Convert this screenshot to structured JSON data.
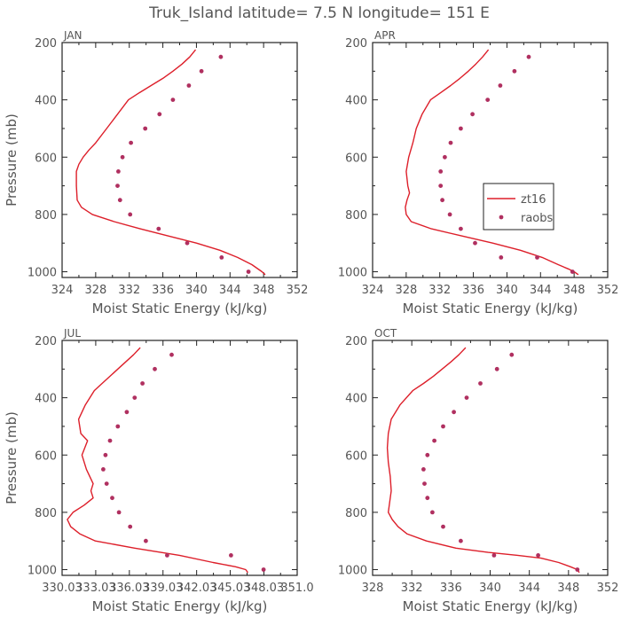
{
  "title": "Truk_Island  latitude= 7.5 N longitude= 151 E",
  "colors": {
    "model": "#dd1f2a",
    "obs": "#b03060",
    "text": "#555555",
    "frame": "#222222"
  },
  "chart_data": [
    {
      "type": "line",
      "panel": "JAN",
      "title": "JAN",
      "xlabel": "Moist Static Energy (kJ/kg)",
      "ylabel": "Pressure (mb)",
      "xlim": [
        324,
        352
      ],
      "ylim": [
        1020,
        200
      ],
      "xticks": [
        324,
        328,
        332,
        336,
        340,
        344,
        348,
        352
      ],
      "xtick_labels": [
        "324",
        "328",
        "332",
        "336",
        "340",
        "344",
        "348",
        "352"
      ],
      "yticks": [
        200,
        400,
        600,
        800,
        1000
      ],
      "ytick_labels": [
        "200",
        "400",
        "600",
        "800",
        "1000"
      ],
      "series": [
        {
          "name": "zt16",
          "kind": "line",
          "x": [
            339.9,
            339.2,
            338.3,
            337.2,
            336.0,
            334.6,
            333.2,
            331.9,
            330.6,
            329.3,
            328.0,
            327.2,
            326.5,
            326.0,
            325.7,
            325.7,
            325.8,
            326.3,
            327.6,
            330.2,
            333.3,
            336.6,
            340.0,
            342.8,
            344.9,
            346.6,
            347.8,
            348.2
          ],
          "y": [
            225,
            250,
            275,
            300,
            325,
            350,
            375,
            400,
            450,
            500,
            550,
            575,
            600,
            625,
            650,
            700,
            750,
            775,
            800,
            825,
            850,
            875,
            900,
            925,
            950,
            975,
            1000,
            1010
          ]
        },
        {
          "name": "raobs",
          "kind": "points",
          "x": [
            342.9,
            340.6,
            339.1,
            337.2,
            335.6,
            333.9,
            332.2,
            331.2,
            330.7,
            330.6,
            330.9,
            332.1,
            335.5,
            338.9,
            343.0,
            346.2
          ],
          "y": [
            250,
            300,
            350,
            400,
            450,
            500,
            550,
            600,
            650,
            700,
            750,
            800,
            850,
            900,
            950,
            1000
          ]
        }
      ]
    },
    {
      "type": "line",
      "panel": "APR",
      "title": "APR",
      "xlabel": "Moist Static Energy (kJ/kg)",
      "ylabel": "",
      "xlim": [
        324,
        352
      ],
      "ylim": [
        1020,
        200
      ],
      "xticks": [
        324,
        328,
        332,
        336,
        340,
        344,
        348,
        352
      ],
      "xtick_labels": [
        "324",
        "328",
        "332",
        "336",
        "340",
        "344",
        "348",
        "352"
      ],
      "yticks": [
        200,
        400,
        600,
        800,
        1000
      ],
      "ytick_labels": [
        "200",
        "400",
        "600",
        "800",
        "1000"
      ],
      "legend": {
        "position": "center-right",
        "entries": [
          "zt16",
          "raobs"
        ]
      },
      "series": [
        {
          "name": "zt16",
          "kind": "line",
          "x": [
            337.8,
            337.1,
            336.3,
            335.4,
            334.4,
            333.3,
            332.1,
            330.9,
            329.9,
            329.2,
            328.8,
            328.3,
            328.0,
            328.2,
            328.4,
            328.1,
            327.9,
            328.0,
            328.6,
            331.0,
            334.6,
            338.3,
            341.6,
            344.2,
            346.1,
            347.3,
            348.0,
            348.5
          ],
          "y": [
            225,
            250,
            275,
            300,
            325,
            350,
            375,
            400,
            450,
            500,
            550,
            600,
            650,
            700,
            725,
            750,
            775,
            800,
            825,
            850,
            875,
            900,
            925,
            950,
            975,
            990,
            1000,
            1010
          ]
        },
        {
          "name": "raobs",
          "kind": "points",
          "x": [
            342.6,
            340.9,
            339.2,
            337.7,
            335.9,
            334.5,
            333.3,
            332.6,
            332.1,
            332.1,
            332.3,
            333.2,
            334.5,
            336.2,
            339.3,
            343.6,
            347.8
          ],
          "y": [
            250,
            300,
            350,
            400,
            450,
            500,
            550,
            600,
            650,
            700,
            750,
            800,
            850,
            900,
            950,
            950,
            1000
          ]
        }
      ]
    },
    {
      "type": "line",
      "panel": "JUL",
      "title": "JUL",
      "xlabel": "Moist Static Energy (kJ/kg)",
      "ylabel": "Pressure (mb)",
      "xlim": [
        330.03,
        351.0
      ],
      "ylim": [
        1020,
        200
      ],
      "xticks": [
        330.03,
        333.03,
        336.03,
        339.03,
        342.03,
        345.03,
        348.03,
        351.0
      ],
      "xtick_labels": [
        "330.03",
        "333.03",
        "336.03",
        "339.03",
        "342.03",
        "345.03",
        "348.03",
        "351.0"
      ],
      "yticks": [
        200,
        400,
        600,
        800,
        1000
      ],
      "ytick_labels": [
        "200",
        "400",
        "600",
        "800",
        "1000"
      ],
      "series": [
        {
          "name": "zt16",
          "kind": "line",
          "x": [
            337.0,
            336.4,
            335.7,
            335.0,
            334.3,
            333.6,
            332.9,
            332.1,
            331.5,
            331.7,
            332.3,
            331.8,
            332.2,
            332.8,
            332.6,
            332.8,
            332.0,
            331.0,
            330.5,
            330.8,
            331.6,
            333.0,
            336.5,
            340.5,
            343.5,
            345.5,
            346.4,
            346.6
          ],
          "y": [
            225,
            250,
            275,
            300,
            325,
            350,
            375,
            425,
            475,
            525,
            550,
            600,
            650,
            700,
            725,
            750,
            775,
            800,
            825,
            850,
            875,
            900,
            925,
            950,
            975,
            990,
            1000,
            1010
          ]
        },
        {
          "name": "raobs",
          "kind": "points",
          "x": [
            339.8,
            338.3,
            337.2,
            336.5,
            335.8,
            335.0,
            334.3,
            333.9,
            333.7,
            334.0,
            334.5,
            335.1,
            336.1,
            337.5,
            339.4,
            345.1,
            348.0
          ],
          "y": [
            250,
            300,
            350,
            400,
            450,
            500,
            550,
            600,
            650,
            700,
            750,
            800,
            850,
            900,
            950,
            950,
            1000
          ]
        }
      ]
    },
    {
      "type": "line",
      "panel": "OCT",
      "title": "OCT",
      "xlabel": "Moist Static Energy (kJ/kg)",
      "ylabel": "",
      "xlim": [
        328,
        352
      ],
      "ylim": [
        1020,
        200
      ],
      "xticks": [
        328,
        332,
        336,
        340,
        344,
        348,
        352
      ],
      "xtick_labels": [
        "328",
        "332",
        "336",
        "340",
        "344",
        "348",
        "352"
      ],
      "yticks": [
        200,
        400,
        600,
        800,
        1000
      ],
      "ytick_labels": [
        "200",
        "400",
        "600",
        "800",
        "1000"
      ],
      "series": [
        {
          "name": "zt16",
          "kind": "line",
          "x": [
            337.5,
            336.8,
            336.0,
            335.1,
            334.2,
            333.2,
            332.1,
            330.8,
            329.9,
            329.6,
            329.5,
            329.6,
            329.8,
            329.9,
            329.7,
            329.6,
            330.0,
            330.6,
            331.5,
            333.5,
            336.5,
            339.8,
            342.8,
            345.2,
            347.0,
            348.2,
            348.9,
            349.1
          ],
          "y": [
            225,
            250,
            275,
            300,
            325,
            350,
            375,
            425,
            475,
            525,
            575,
            625,
            675,
            725,
            775,
            800,
            825,
            850,
            875,
            900,
            925,
            940,
            950,
            960,
            975,
            990,
            1000,
            1010
          ]
        },
        {
          "name": "raobs",
          "kind": "points",
          "x": [
            342.2,
            340.7,
            339.0,
            337.6,
            336.3,
            335.2,
            334.3,
            333.6,
            333.2,
            333.3,
            333.6,
            334.1,
            335.2,
            337.0,
            340.4,
            344.9,
            348.9
          ],
          "y": [
            250,
            300,
            350,
            400,
            450,
            500,
            550,
            600,
            650,
            700,
            750,
            800,
            850,
            900,
            950,
            950,
            1000
          ]
        }
      ]
    }
  ]
}
